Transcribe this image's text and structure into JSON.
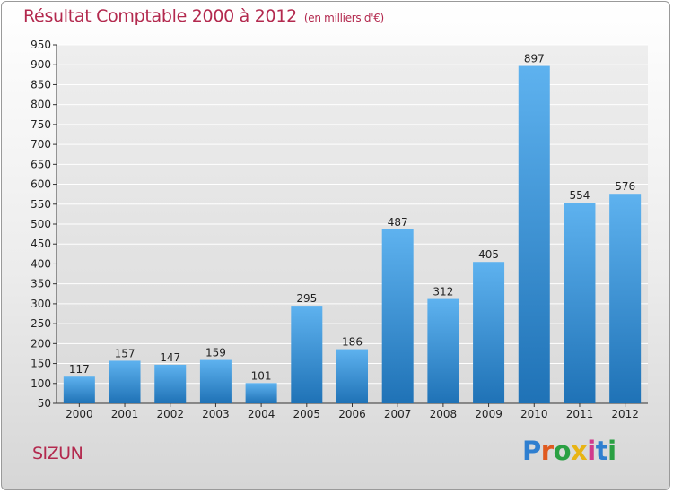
{
  "header": {
    "title": "Résultat Comptable 2000 à 2012",
    "subtitle": "(en milliers d'€)"
  },
  "footer": {
    "commune": "SIZUN",
    "logo_letters": [
      "P",
      "r",
      "o",
      "x",
      "i",
      "t",
      "i"
    ]
  },
  "colors": {
    "title": "#b3294e",
    "bar_top": "#5eb2ef",
    "bar_bottom": "#1f72b6",
    "grid": "#ffffff"
  },
  "chart_data": {
    "type": "bar",
    "title": "Résultat Comptable 2000 à 2012",
    "subtitle": "(en milliers d'€)",
    "xlabel": "",
    "ylabel": "",
    "ylim": [
      50,
      950
    ],
    "y_ticks": [
      50,
      100,
      150,
      200,
      250,
      300,
      350,
      400,
      450,
      500,
      550,
      600,
      650,
      700,
      750,
      800,
      850,
      900,
      950
    ],
    "grid": true,
    "categories": [
      "2000",
      "2001",
      "2002",
      "2003",
      "2004",
      "2005",
      "2006",
      "2007",
      "2008",
      "2009",
      "2010",
      "2011",
      "2012"
    ],
    "values": [
      117,
      157,
      147,
      159,
      101,
      295,
      186,
      487,
      312,
      405,
      897,
      554,
      576
    ],
    "value_labels": [
      "117",
      "157",
      "147",
      "159",
      "101",
      "295",
      "186",
      "487",
      "312",
      "405",
      "897",
      "554",
      "576"
    ]
  }
}
